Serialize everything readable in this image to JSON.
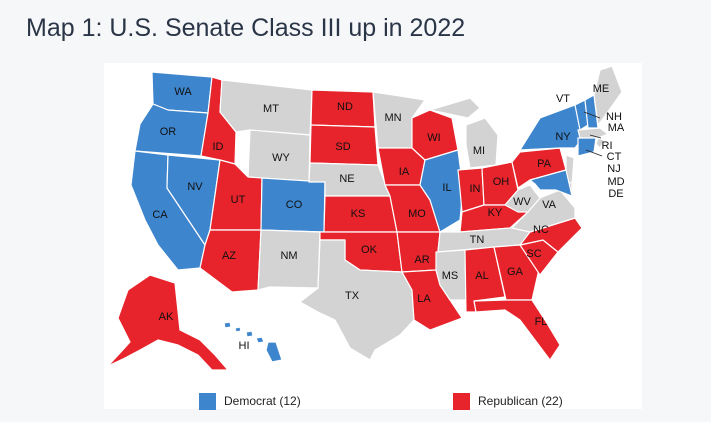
{
  "title": "Map 1: U.S. Senate Class III up in 2022",
  "colors": {
    "dem": "#3d85cd",
    "rep": "#e7232b",
    "none": "#d3d3d3"
  },
  "legend": {
    "dem": "Democrat (12)",
    "rep": "Republican (22)"
  },
  "states": [
    {
      "abbr": "WA",
      "party": "dem"
    },
    {
      "abbr": "OR",
      "party": "dem"
    },
    {
      "abbr": "CA",
      "party": "dem"
    },
    {
      "abbr": "NV",
      "party": "dem"
    },
    {
      "abbr": "ID",
      "party": "rep"
    },
    {
      "abbr": "MT",
      "party": "none"
    },
    {
      "abbr": "WY",
      "party": "none"
    },
    {
      "abbr": "UT",
      "party": "rep"
    },
    {
      "abbr": "AZ",
      "party": "rep"
    },
    {
      "abbr": "CO",
      "party": "dem"
    },
    {
      "abbr": "NM",
      "party": "none"
    },
    {
      "abbr": "ND",
      "party": "rep"
    },
    {
      "abbr": "SD",
      "party": "rep"
    },
    {
      "abbr": "NE",
      "party": "none"
    },
    {
      "abbr": "KS",
      "party": "rep"
    },
    {
      "abbr": "OK",
      "party": "rep"
    },
    {
      "abbr": "TX",
      "party": "none"
    },
    {
      "abbr": "MN",
      "party": "none"
    },
    {
      "abbr": "IA",
      "party": "rep"
    },
    {
      "abbr": "MO",
      "party": "rep"
    },
    {
      "abbr": "AR",
      "party": "rep"
    },
    {
      "abbr": "LA",
      "party": "rep"
    },
    {
      "abbr": "WI",
      "party": "rep"
    },
    {
      "abbr": "IL",
      "party": "dem"
    },
    {
      "abbr": "MI",
      "party": "none"
    },
    {
      "abbr": "IN",
      "party": "rep"
    },
    {
      "abbr": "OH",
      "party": "rep"
    },
    {
      "abbr": "KY",
      "party": "rep"
    },
    {
      "abbr": "TN",
      "party": "none"
    },
    {
      "abbr": "MS",
      "party": "none"
    },
    {
      "abbr": "AL",
      "party": "rep"
    },
    {
      "abbr": "GA",
      "party": "rep"
    },
    {
      "abbr": "FL",
      "party": "rep"
    },
    {
      "abbr": "SC",
      "party": "rep"
    },
    {
      "abbr": "NC",
      "party": "rep"
    },
    {
      "abbr": "VA",
      "party": "none"
    },
    {
      "abbr": "WV",
      "party": "none"
    },
    {
      "abbr": "PA",
      "party": "rep"
    },
    {
      "abbr": "NY",
      "party": "dem"
    },
    {
      "abbr": "VT",
      "party": "dem"
    },
    {
      "abbr": "ME",
      "party": "none"
    },
    {
      "abbr": "NH",
      "party": "dem"
    },
    {
      "abbr": "MA",
      "party": "none"
    },
    {
      "abbr": "RI",
      "party": "none"
    },
    {
      "abbr": "CT",
      "party": "dem"
    },
    {
      "abbr": "NJ",
      "party": "none"
    },
    {
      "abbr": "MD",
      "party": "dem"
    },
    {
      "abbr": "DE",
      "party": "none"
    },
    {
      "abbr": "AK",
      "party": "rep"
    },
    {
      "abbr": "HI",
      "party": "dem"
    }
  ]
}
